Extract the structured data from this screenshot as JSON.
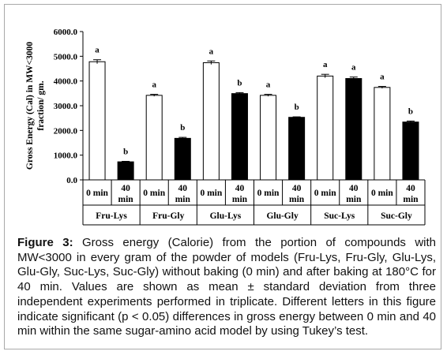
{
  "chart_data": {
    "type": "bar",
    "ylabel": "Gross Energy (Cal) in MW<3000 fraction/ gm.",
    "ylim": [
      0,
      6000
    ],
    "yticks": [
      0,
      1000,
      2000,
      3000,
      4000,
      5000,
      6000
    ],
    "ytick_labels": [
      "0.0",
      "1000.0",
      "2000.0",
      "3000.0",
      "4000.0",
      "5000.0",
      "6000.0"
    ],
    "groups": [
      "Fru-Lys",
      "Fru-Gly",
      "Glu-Lys",
      "Glu-Gly",
      "Suc-Lys",
      "Suc-Gly"
    ],
    "subcategories": [
      "0 min",
      "40 min"
    ],
    "subcategory_lines": [
      [
        "0 min"
      ],
      [
        "40",
        "min"
      ]
    ],
    "series": [
      {
        "values": [
          4780,
          3420,
          4740,
          3420,
          4200,
          3740
        ],
        "errors": [
          80,
          40,
          70,
          40,
          70,
          40
        ],
        "letters": [
          "a",
          "a",
          "a",
          "a",
          "a",
          "a"
        ],
        "fill": "#ffffff"
      },
      {
        "values": [
          730,
          1680,
          3490,
          2530,
          4100,
          2340
        ],
        "errors": [
          20,
          40,
          40,
          20,
          60,
          40
        ],
        "letters": [
          "b",
          "b",
          "b",
          "b",
          "a",
          "b"
        ],
        "fill": "#000000"
      }
    ],
    "grid": false,
    "legend": "none"
  },
  "caption": {
    "label": "Figure 3:",
    "text": " Gross energy (Calorie) from the portion of compounds with MW<3000 in every gram of the powder of models (Fru-Lys, Fru-Gly, Glu-Lys, Glu-Gly, Suc-Lys, Suc-Gly) without baking (0 min) and after baking at 180°C for 40 min. Values are shown as mean ± standard deviation from three independent experiments performed in triplicate. Different letters in this figure indicate significant (p < 0.05) differences in gross energy between 0 min and 40 min within the same sugar-amino acid model by using Tukey’s test."
  }
}
